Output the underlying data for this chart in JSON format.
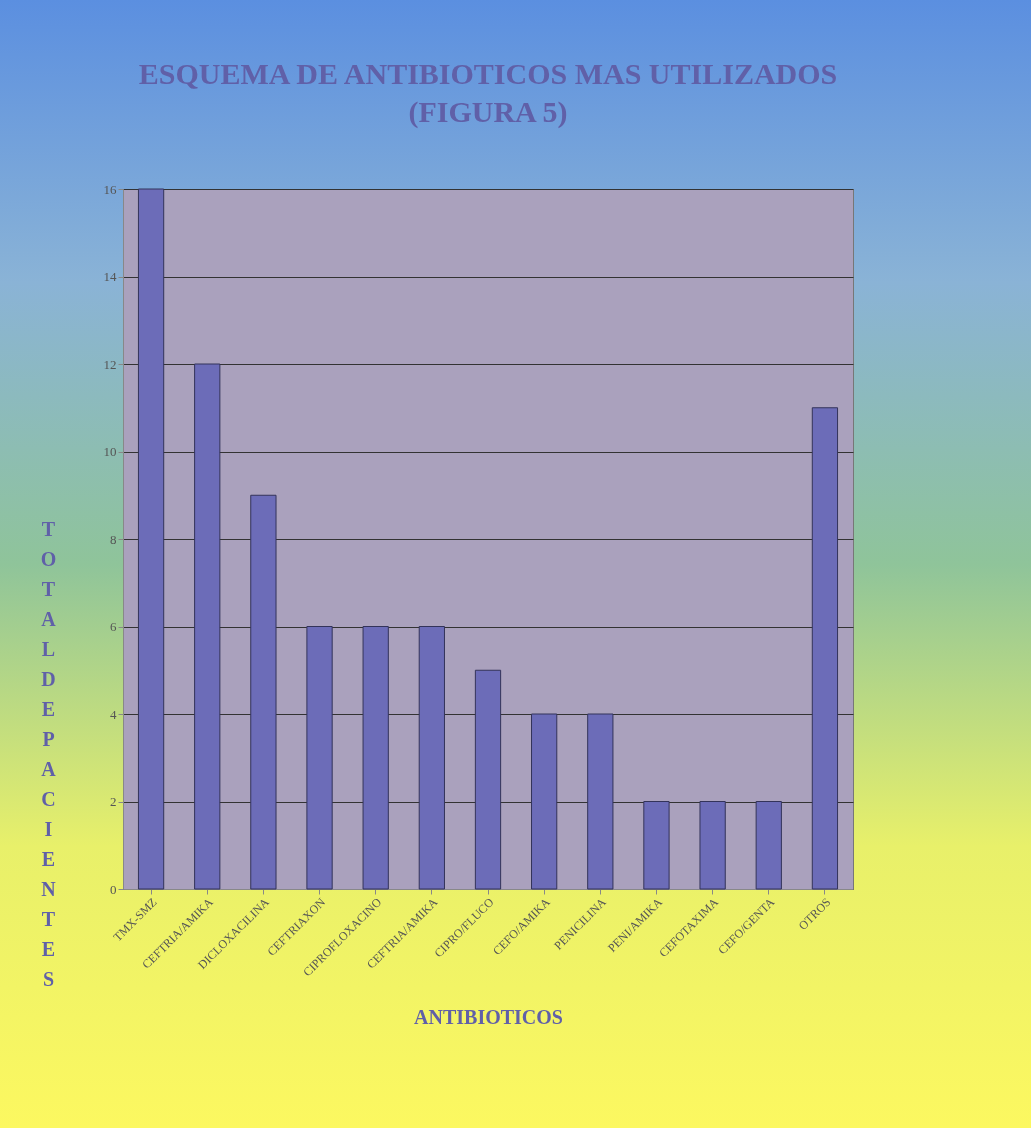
{
  "chart_data": {
    "type": "bar",
    "title": "ESQUEMA DE ANTIBIOTICOS MAS UTILIZADOS (FIGURA 5)",
    "xlabel": "ANTIBIOTICOS",
    "ylabel": "TOTAL DE PACIENTES",
    "categories": [
      "TMX-SMZ",
      "CEFTRIA/AMIKA",
      "DICLOXACILINA",
      "CEFTRIAXON",
      "CIPROFLOXACINO",
      "CEFTRIA/AMIKA",
      "CIPRO/FLUCO",
      "CEFO/AMIKA",
      "PENICILINA",
      "PENI/AMIKA",
      "CEFOTAXIMA",
      "CEFO/GENTA",
      "OTROS"
    ],
    "values": [
      16,
      12,
      9,
      6,
      6,
      6,
      5,
      4,
      4,
      2,
      2,
      2,
      11
    ],
    "color": "#6c6cb8",
    "ylim": [
      0,
      16
    ],
    "yticks": [
      0,
      2,
      4,
      6,
      8,
      10,
      12,
      14,
      16
    ],
    "grid": "y"
  }
}
